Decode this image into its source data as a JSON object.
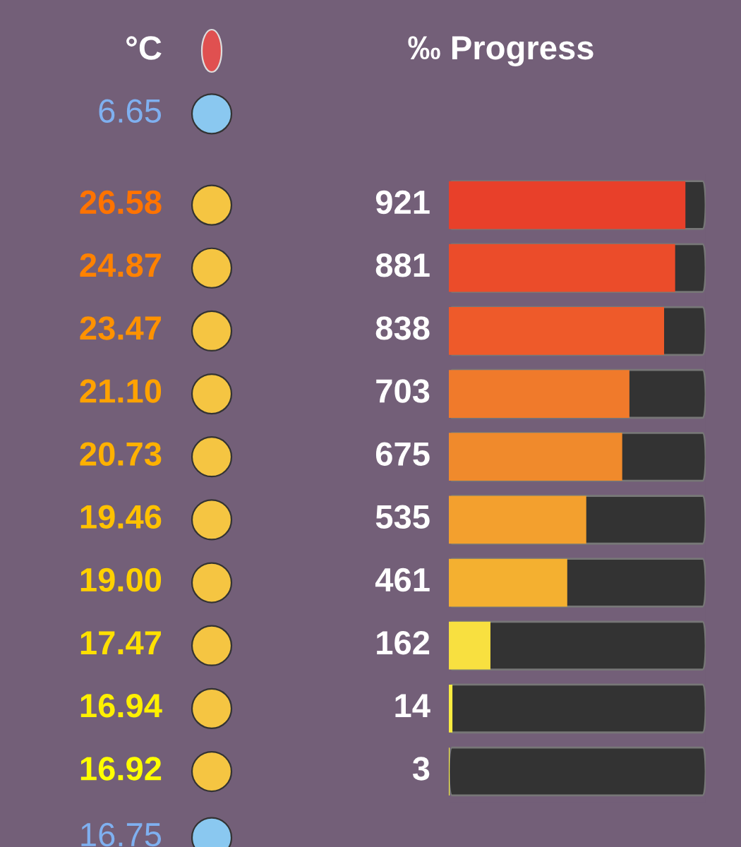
{
  "chart_data": {
    "type": "bar",
    "orientation": "horizontal",
    "title": "‰ Progress",
    "ylabel": "°C",
    "categories": [
      "26.58",
      "24.87",
      "23.47",
      "21.10",
      "20.73",
      "19.46",
      "19.00",
      "17.47",
      "16.94",
      "16.92"
    ],
    "values": [
      921,
      881,
      838,
      703,
      675,
      535,
      461,
      162,
      14,
      3
    ],
    "colors": [
      "#e8402a",
      "#eb4c2a",
      "#ee5a2a",
      "#f07a2b",
      "#f08a2c",
      "#f3a02e",
      "#f4b030",
      "#f8e040",
      "#f9ec40",
      "#faf040"
    ],
    "xlim": [
      0,
      1000
    ],
    "data_labels": true,
    "tick_labels": "y",
    "annotations": [
      "6.65",
      "16.75"
    ]
  }
}
